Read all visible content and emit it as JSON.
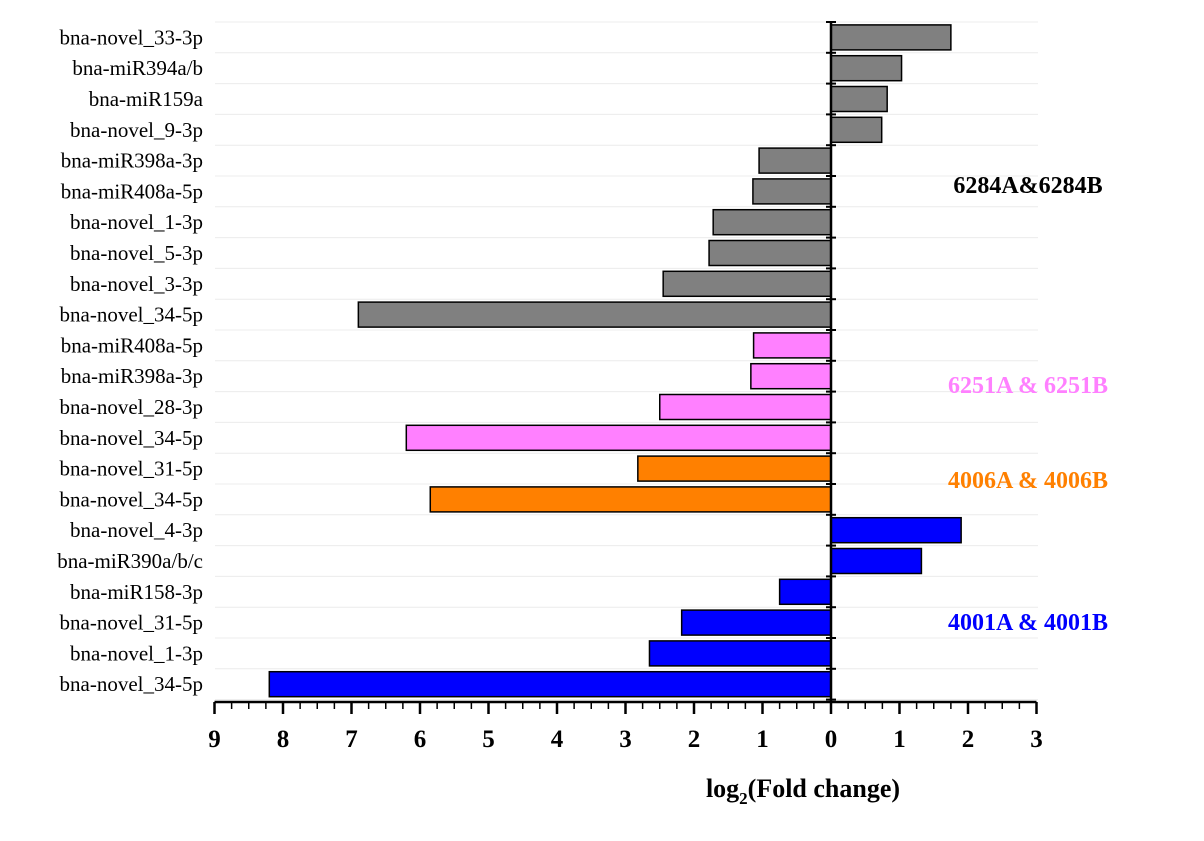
{
  "chart_data": {
    "type": "bar",
    "orientation": "horizontal",
    "xlabel_prefix": "log",
    "xlabel_subscript": "2",
    "xlabel_suffix": "(Fold change)",
    "xlim": [
      -9,
      3
    ],
    "x_ticks": [
      {
        "value": -9,
        "label": "9"
      },
      {
        "value": -8,
        "label": "8"
      },
      {
        "value": -7,
        "label": "7"
      },
      {
        "value": -6,
        "label": "6"
      },
      {
        "value": -5,
        "label": "5"
      },
      {
        "value": -4,
        "label": "4"
      },
      {
        "value": -3,
        "label": "3"
      },
      {
        "value": -2,
        "label": "2"
      },
      {
        "value": -1,
        "label": "1"
      },
      {
        "value": 0,
        "label": "0"
      },
      {
        "value": 1,
        "label": "1"
      },
      {
        "value": 2,
        "label": "2"
      },
      {
        "value": 3,
        "label": "3"
      }
    ],
    "groups": [
      {
        "name": "6284A&6284B",
        "color": "#808080",
        "label_color": "#000000",
        "items": [
          {
            "label": "bna-novel_33-3p",
            "value": 1.75
          },
          {
            "label": "bna-miR394a/b",
            "value": 1.03
          },
          {
            "label": "bna-miR159a",
            "value": 0.82
          },
          {
            "label": "bna-novel_9-3p",
            "value": 0.74
          },
          {
            "label": "bna-miR398a-3p",
            "value": -1.05
          },
          {
            "label": "bna-miR408a-5p",
            "value": -1.14
          },
          {
            "label": "bna-novel_1-3p",
            "value": -1.72
          },
          {
            "label": "bna-novel_5-3p",
            "value": -1.78
          },
          {
            "label": "bna-novel_3-3p",
            "value": -2.45
          },
          {
            "label": "bna-novel_34-5p",
            "value": -6.9
          }
        ]
      },
      {
        "name": "6251A & 6251B",
        "color": "#FF80FF",
        "label_color": "#FF80FF",
        "items": [
          {
            "label": "bna-miR408a-5p",
            "value": -1.13
          },
          {
            "label": "bna-miR398a-3p",
            "value": -1.17
          },
          {
            "label": "bna-novel_28-3p",
            "value": -2.5
          },
          {
            "label": "bna-novel_34-5p",
            "value": -6.2
          }
        ]
      },
      {
        "name": "4006A & 4006B",
        "color": "#FF8000",
        "label_color": "#FF8000",
        "items": [
          {
            "label": "bna-novel_31-5p",
            "value": -2.82
          },
          {
            "label": "bna-novel_34-5p",
            "value": -5.85
          }
        ]
      },
      {
        "name": "4001A & 4001B",
        "color": "#0000FF",
        "label_color": "#0000FF",
        "items": [
          {
            "label": "bna-novel_4-3p",
            "value": 1.9
          },
          {
            "label": "bna-miR390a/b/c",
            "value": 1.32
          },
          {
            "label": "bna-miR158-3p",
            "value": -0.75
          },
          {
            "label": "bna-novel_31-5p",
            "value": -2.18
          },
          {
            "label": "bna-novel_1-3p",
            "value": -2.65
          },
          {
            "label": "bna-novel_34-5p",
            "value": -8.2
          }
        ]
      }
    ]
  }
}
